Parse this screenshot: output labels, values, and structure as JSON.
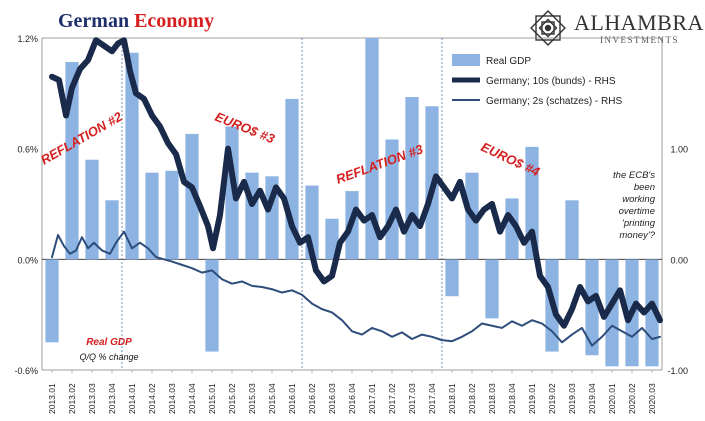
{
  "header": {
    "title_part1": "German",
    "title_part2": "Economy",
    "title_color1": "#1f2f6b",
    "title_color2": "#d62020"
  },
  "logo": {
    "name": "ALHAMBRA",
    "sub": "INVESTMENTS",
    "icon": "alhambra-geometric-star-icon"
  },
  "chart_data": {
    "type": "bar",
    "quarters": [
      "2013.01",
      "2013.02",
      "2013.03",
      "2013.04",
      "2014.01",
      "2014.02",
      "2014.03",
      "2014.04",
      "2015.01",
      "2015.02",
      "2015.03",
      "2015.04",
      "2016.01",
      "2016.02",
      "2016.03",
      "2016.04",
      "2017.01",
      "2017.02",
      "2017.03",
      "2017.04",
      "2018.01",
      "2018.02",
      "2018.03",
      "2018.04",
      "2019.01",
      "2019.02",
      "2019.03",
      "2019.04",
      "2020.01",
      "2020.02",
      "2020.03"
    ],
    "left_axis": {
      "ticks": [
        "1.2%",
        "0.6%",
        "0.0%",
        "-0.6%"
      ],
      "values": [
        1.2,
        0.6,
        0.0,
        -0.6
      ],
      "range": [
        -0.6,
        1.2
      ]
    },
    "right_axis": {
      "ticks": [
        "1.00",
        "0.00",
        "-1.00"
      ],
      "values": [
        1.0,
        0.0,
        -1.0
      ],
      "range": [
        -1.0,
        2.0
      ]
    },
    "series": [
      {
        "name": "Real GDP",
        "type": "bar",
        "axis": "left",
        "color": "#8db3e2",
        "values": [
          -0.45,
          1.07,
          0.54,
          0.32,
          1.12,
          0.47,
          0.48,
          0.68,
          -0.5,
          0.72,
          0.47,
          0.45,
          0.87,
          0.4,
          0.22,
          0.37,
          1.2,
          0.65,
          0.88,
          0.83,
          -0.2,
          0.47,
          -0.32,
          0.33,
          0.61,
          -0.5,
          0.32,
          -0.52,
          -0.58,
          -0.58,
          -0.58
        ]
      },
      {
        "name": "Germany; 10s (bunds) - RHS",
        "type": "line",
        "axis": "right",
        "color": "#1a2a4a",
        "x": [
          0,
          0.35,
          0.7,
          1.0,
          1.4,
          1.8,
          2.2,
          2.6,
          3.0,
          3.3,
          3.6,
          3.9,
          4.2,
          4.6,
          5.0,
          5.4,
          5.8,
          6.2,
          6.6,
          7.0,
          7.4,
          7.8,
          8.05,
          8.4,
          8.8,
          9.2,
          9.6,
          10.0,
          10.4,
          10.8,
          11.2,
          11.6,
          12.0,
          12.4,
          12.8,
          13.2,
          13.6,
          14.0,
          14.4,
          14.8,
          15.2,
          15.6,
          16.0,
          16.4,
          16.8,
          17.2,
          17.6,
          18.0,
          18.4,
          18.8,
          19.2,
          19.6,
          20.0,
          20.4,
          20.8,
          21.2,
          21.6,
          22.0,
          22.4,
          22.8,
          23.2,
          23.6,
          24.0,
          24.4,
          24.8,
          25.2,
          25.6,
          26.0,
          26.4,
          26.8,
          27.2,
          27.6,
          28.0,
          28.4,
          28.8,
          29.2,
          29.6,
          30.0,
          30.4
        ],
        "values": [
          1.65,
          1.62,
          1.3,
          1.55,
          1.72,
          1.8,
          1.98,
          1.93,
          1.88,
          1.95,
          1.98,
          1.7,
          1.5,
          1.45,
          1.3,
          1.2,
          1.05,
          0.95,
          0.7,
          0.65,
          0.48,
          0.3,
          0.1,
          0.4,
          1.0,
          0.55,
          0.7,
          0.5,
          0.62,
          0.45,
          0.65,
          0.55,
          0.3,
          0.15,
          0.2,
          -0.1,
          -0.2,
          -0.15,
          0.15,
          0.25,
          0.45,
          0.35,
          0.4,
          0.2,
          0.3,
          0.45,
          0.25,
          0.4,
          0.3,
          0.5,
          0.75,
          0.65,
          0.55,
          0.7,
          0.45,
          0.35,
          0.45,
          0.5,
          0.25,
          0.4,
          0.3,
          0.15,
          0.25,
          -0.15,
          -0.25,
          -0.5,
          -0.6,
          -0.45,
          -0.25,
          -0.38,
          -0.33,
          -0.52,
          -0.4,
          -0.28,
          -0.55,
          -0.4,
          -0.48,
          -0.4,
          -0.55
        ]
      },
      {
        "name": "Germany; 2s (schatzes) - RHS",
        "type": "line",
        "axis": "right",
        "color": "#2e4d7a",
        "x": [
          0,
          0.3,
          0.6,
          0.9,
          1.2,
          1.5,
          1.8,
          2.1,
          2.5,
          2.9,
          3.2,
          3.6,
          4.0,
          4.4,
          4.8,
          5.2,
          5.6,
          6.0,
          6.5,
          7.0,
          7.5,
          8.0,
          8.5,
          9.0,
          9.5,
          10.0,
          10.5,
          11.0,
          11.5,
          12.0,
          12.5,
          13.0,
          13.5,
          14.0,
          14.5,
          15.0,
          15.5,
          16.0,
          16.5,
          17.0,
          17.5,
          18.0,
          18.5,
          19.0,
          19.5,
          20.0,
          20.5,
          21.0,
          21.5,
          22.0,
          22.5,
          23.0,
          23.5,
          24.0,
          24.5,
          25.0,
          25.5,
          26.0,
          26.5,
          27.0,
          27.5,
          28.0,
          28.5,
          29.0,
          29.5,
          30.0,
          30.4
        ],
        "values": [
          0.02,
          0.22,
          0.12,
          0.05,
          0.08,
          0.2,
          0.1,
          0.15,
          0.08,
          0.05,
          0.15,
          0.25,
          0.1,
          0.15,
          0.1,
          0.02,
          0.0,
          -0.02,
          -0.05,
          -0.08,
          -0.12,
          -0.1,
          -0.18,
          -0.22,
          -0.2,
          -0.24,
          -0.25,
          -0.27,
          -0.3,
          -0.28,
          -0.32,
          -0.4,
          -0.45,
          -0.48,
          -0.55,
          -0.65,
          -0.68,
          -0.62,
          -0.65,
          -0.7,
          -0.66,
          -0.72,
          -0.68,
          -0.7,
          -0.73,
          -0.74,
          -0.7,
          -0.65,
          -0.58,
          -0.6,
          -0.62,
          -0.56,
          -0.6,
          -0.55,
          -0.58,
          -0.65,
          -0.75,
          -0.68,
          -0.62,
          -0.78,
          -0.7,
          -0.6,
          -0.65,
          -0.7,
          -0.62,
          -0.72,
          -0.7
        ]
      }
    ],
    "annotations": [
      {
        "text": "REFLATION #2",
        "color": "#d62020"
      },
      {
        "text": "EURO$ #3",
        "color": "#d62020"
      },
      {
        "text": "REFLATION #3",
        "color": "#d62020"
      },
      {
        "text": "EURO$ #4",
        "color": "#d62020"
      },
      {
        "text": "Real GDP",
        "color": "#d62020"
      },
      {
        "text": "Q/Q % change",
        "color": "#111111"
      }
    ],
    "ecb_note": [
      "the ECB's",
      "been",
      "working",
      "overtime",
      "'printing",
      "money'?"
    ],
    "event_lines_quarter_index": [
      3.5,
      12.5,
      19.5
    ],
    "legend_position": "top-right",
    "grid": false
  }
}
